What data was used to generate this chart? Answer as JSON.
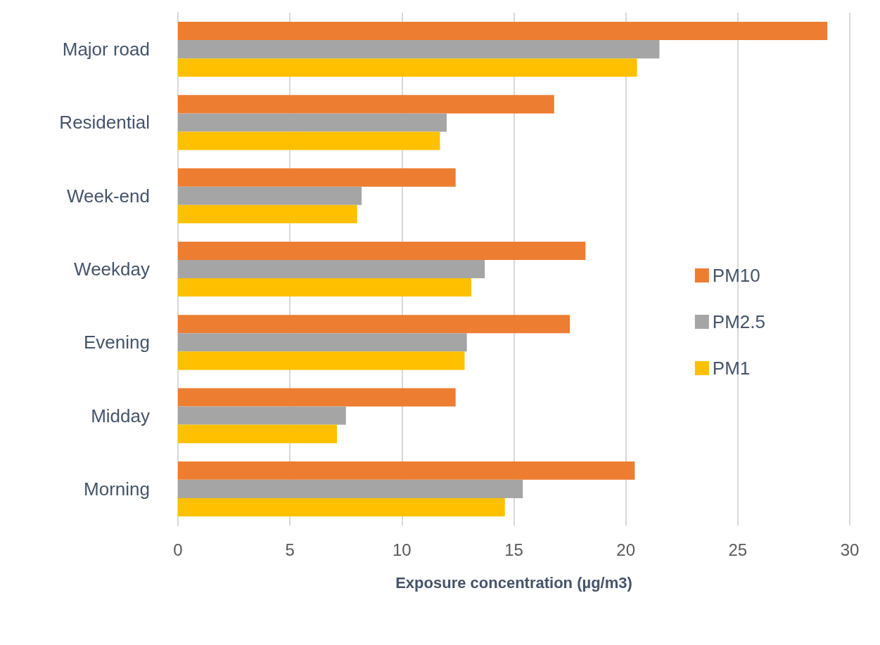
{
  "chart_data": {
    "type": "bar",
    "orientation": "horizontal",
    "xlabel": "Exposure concentration (µg/m3)",
    "categories": [
      "Major road",
      "Residential",
      "Week-end",
      "Weekday",
      "Evening",
      "Midday",
      "Morning"
    ],
    "series": [
      {
        "name": "PM10",
        "color": "#ed7d31",
        "values": [
          29.0,
          16.8,
          12.4,
          18.2,
          17.5,
          12.4,
          20.4
        ]
      },
      {
        "name": "PM2.5",
        "color": "#a5a5a5",
        "values": [
          21.5,
          12.0,
          8.2,
          13.7,
          12.9,
          7.5,
          15.4
        ]
      },
      {
        "name": "PM1",
        "color": "#ffc000",
        "values": [
          20.5,
          11.7,
          8.0,
          13.1,
          12.8,
          7.1,
          14.6
        ]
      }
    ],
    "xlim": [
      0,
      30
    ],
    "xticks": [
      0,
      5,
      10,
      15,
      20,
      25,
      30
    ],
    "grid": "x",
    "legend": "right"
  }
}
